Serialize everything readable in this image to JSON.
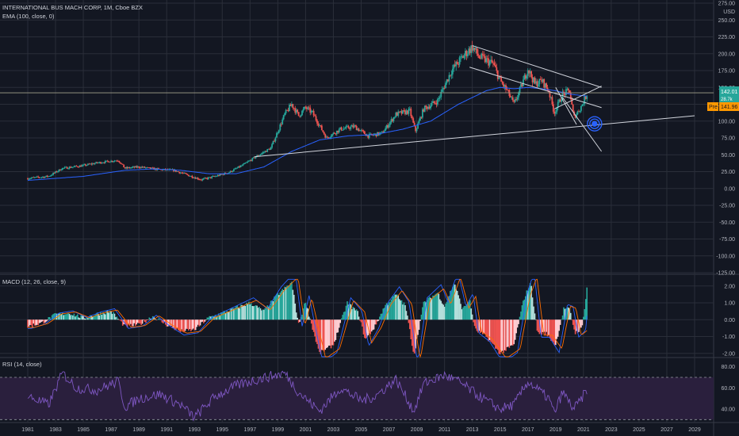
{
  "header": {
    "symbol_line": "INTERNATIONAL BUS MACH CORP, 1M, Cboe BZX",
    "ema_label": "EMA (100, close, 0)",
    "macd_label": "MACD (12, 26, close, 9)",
    "rsi_label": "RSI (14, close)",
    "price_badge": "142.01",
    "price_badge_sub": "28.7k",
    "pre_badge_tag": "Pre",
    "pre_badge_value": "141.96"
  },
  "colors": {
    "background": "#131722",
    "grid": "#2a2e39",
    "up": "#26a69a",
    "down": "#ef5350",
    "ema": "#2962ff",
    "macd_line": "#2962ff",
    "signal_line": "#ff6d00",
    "rsi_line": "#7e57c2",
    "rsi_band": "#2a1f3d",
    "trendline": "#d1d4dc",
    "price_line": "#a3a08b"
  },
  "chart_data": [
    {
      "type": "candlestick",
      "title": "INTERNATIONAL BUS MACH CORP, 1M, Cboe BZX",
      "y_ticks": [
        "275.00",
        "250.00",
        "225.00",
        "200.00",
        "175.00",
        "150.00",
        "125.00",
        "100.00",
        "75.00",
        "50.00",
        "25.00",
        "0.00",
        "-25.00",
        "-50.00",
        "-75.00",
        "-100.00",
        "-125.00"
      ],
      "y_unit": "USD",
      "x_ticks": [
        "1981",
        "1983",
        "1985",
        "1987",
        "1989",
        "1991",
        "1993",
        "1995",
        "1997",
        "1999",
        "2001",
        "2003",
        "2005",
        "2007",
        "2009",
        "2011",
        "2013",
        "2015",
        "2017",
        "2019",
        "2021",
        "2023",
        "2025",
        "2027",
        "2029"
      ],
      "ylim": [
        -125,
        275
      ],
      "last_price": 142.01,
      "price_anchors": [
        [
          1981.0,
          15
        ],
        [
          1982.5,
          18
        ],
        [
          1983.5,
          30
        ],
        [
          1985.0,
          34
        ],
        [
          1986.0,
          38
        ],
        [
          1987.5,
          42
        ],
        [
          1988.0,
          30
        ],
        [
          1989.0,
          32
        ],
        [
          1990.5,
          28
        ],
        [
          1991.5,
          27
        ],
        [
          1992.5,
          20
        ],
        [
          1993.5,
          13
        ],
        [
          1994.5,
          18
        ],
        [
          1995.5,
          24
        ],
        [
          1996.5,
          35
        ],
        [
          1997.5,
          48
        ],
        [
          1998.5,
          60
        ],
        [
          1999.5,
          110
        ],
        [
          2000.0,
          125
        ],
        [
          2000.5,
          108
        ],
        [
          2001.0,
          120
        ],
        [
          2001.5,
          112
        ],
        [
          2002.5,
          75
        ],
        [
          2003.5,
          88
        ],
        [
          2004.5,
          92
        ],
        [
          2005.5,
          78
        ],
        [
          2006.5,
          82
        ],
        [
          2007.5,
          110
        ],
        [
          2008.5,
          115
        ],
        [
          2008.9,
          85
        ],
        [
          2009.5,
          118
        ],
        [
          2010.5,
          130
        ],
        [
          2011.5,
          175
        ],
        [
          2012.5,
          200
        ],
        [
          2013.0,
          210
        ],
        [
          2013.5,
          195
        ],
        [
          2014.5,
          185
        ],
        [
          2015.0,
          160
        ],
        [
          2015.5,
          145
        ],
        [
          2016.0,
          125
        ],
        [
          2016.5,
          150
        ],
        [
          2017.0,
          178
        ],
        [
          2017.5,
          155
        ],
        [
          2018.0,
          160
        ],
        [
          2018.5,
          145
        ],
        [
          2018.9,
          112
        ],
        [
          2019.5,
          140
        ],
        [
          2020.0,
          145
        ],
        [
          2020.3,
          105
        ],
        [
          2020.8,
          120
        ],
        [
          2021.3,
          142
        ]
      ],
      "ema_anchors": [
        [
          1981.0,
          12
        ],
        [
          1985.0,
          18
        ],
        [
          1988.0,
          27
        ],
        [
          1990.0,
          29
        ],
        [
          1992.0,
          27
        ],
        [
          1994.0,
          22
        ],
        [
          1996.0,
          22
        ],
        [
          1998.0,
          32
        ],
        [
          2000.0,
          55
        ],
        [
          2002.0,
          72
        ],
        [
          2004.0,
          78
        ],
        [
          2006.0,
          80
        ],
        [
          2008.0,
          88
        ],
        [
          2010.0,
          100
        ],
        [
          2012.0,
          125
        ],
        [
          2014.0,
          145
        ],
        [
          2015.0,
          150
        ],
        [
          2016.0,
          148
        ],
        [
          2017.0,
          150
        ],
        [
          2018.0,
          148
        ],
        [
          2019.0,
          145
        ],
        [
          2020.0,
          140
        ],
        [
          2021.3,
          137
        ]
      ]
    },
    {
      "type": "bar",
      "title": "MACD (12, 26, close, 9)",
      "y_ticks": [
        "2.00",
        "1.00",
        "0.00",
        "-1.00",
        "-2.00"
      ],
      "ylim": [
        -2.2,
        2.6
      ],
      "hist_anchors": [
        [
          1981.0,
          -0.4
        ],
        [
          1982.0,
          -0.2
        ],
        [
          1983.0,
          0.3
        ],
        [
          1984.0,
          0.4
        ],
        [
          1985.0,
          0.1
        ],
        [
          1986.0,
          0.35
        ],
        [
          1987.0,
          0.5
        ],
        [
          1988.0,
          -0.4
        ],
        [
          1989.0,
          -0.3
        ],
        [
          1990.0,
          0.2
        ],
        [
          1991.0,
          -0.3
        ],
        [
          1992.0,
          -0.7
        ],
        [
          1993.0,
          -0.6
        ],
        [
          1994.0,
          0.1
        ],
        [
          1995.0,
          0.4
        ],
        [
          1996.0,
          0.7
        ],
        [
          1997.0,
          1.0
        ],
        [
          1998.0,
          0.5
        ],
        [
          1999.0,
          1.5
        ],
        [
          2000.0,
          2.2
        ],
        [
          2000.5,
          -0.3
        ],
        [
          2001.0,
          1.1
        ],
        [
          2001.5,
          -0.5
        ],
        [
          2002.0,
          -2.0
        ],
        [
          2003.0,
          -1.5
        ],
        [
          2004.0,
          1.0
        ],
        [
          2004.8,
          0.4
        ],
        [
          2005.3,
          -1.2
        ],
        [
          2006.0,
          -0.4
        ],
        [
          2006.7,
          0.8
        ],
        [
          2007.5,
          1.5
        ],
        [
          2008.2,
          0.8
        ],
        [
          2008.8,
          -2.1
        ],
        [
          2009.5,
          1.0
        ],
        [
          2010.5,
          1.6
        ],
        [
          2011.0,
          0.8
        ],
        [
          2011.7,
          2.2
        ],
        [
          2012.3,
          0.6
        ],
        [
          2012.8,
          1.2
        ],
        [
          2013.2,
          -0.6
        ],
        [
          2014.0,
          -1.0
        ],
        [
          2015.0,
          -2.0
        ],
        [
          2016.0,
          -1.5
        ],
        [
          2016.7,
          1.2
        ],
        [
          2017.2,
          2.2
        ],
        [
          2017.7,
          -0.8
        ],
        [
          2018.3,
          -0.8
        ],
        [
          2019.0,
          -1.5
        ],
        [
          2019.6,
          0.7
        ],
        [
          2020.0,
          0.6
        ],
        [
          2020.4,
          -0.8
        ],
        [
          2020.9,
          -0.5
        ],
        [
          2021.3,
          2.2
        ]
      ]
    },
    {
      "type": "line",
      "title": "RSI (14, close)",
      "y_ticks": [
        "80.00",
        "60.00",
        "40.00"
      ],
      "ylim": [
        28,
        88
      ],
      "band": [
        30,
        70
      ],
      "rsi_anchors": [
        [
          1981.0,
          52
        ],
        [
          1982.5,
          44
        ],
        [
          1983.5,
          74
        ],
        [
          1984.5,
          60
        ],
        [
          1986.0,
          58
        ],
        [
          1987.5,
          66
        ],
        [
          1988.0,
          42
        ],
        [
          1989.0,
          50
        ],
        [
          1990.5,
          54
        ],
        [
          1992.0,
          44
        ],
        [
          1993.0,
          32
        ],
        [
          1994.5,
          52
        ],
        [
          1996.0,
          62
        ],
        [
          1997.5,
          68
        ],
        [
          1999.5,
          74
        ],
        [
          2000.5,
          56
        ],
        [
          2002.0,
          38
        ],
        [
          2003.5,
          60
        ],
        [
          2005.0,
          48
        ],
        [
          2006.0,
          52
        ],
        [
          2007.5,
          68
        ],
        [
          2008.8,
          38
        ],
        [
          2009.5,
          64
        ],
        [
          2011.0,
          72
        ],
        [
          2012.0,
          66
        ],
        [
          2013.5,
          52
        ],
        [
          2015.0,
          40
        ],
        [
          2016.0,
          44
        ],
        [
          2017.0,
          66
        ],
        [
          2018.5,
          50
        ],
        [
          2018.9,
          36
        ],
        [
          2019.5,
          56
        ],
        [
          2020.3,
          40
        ],
        [
          2020.8,
          48
        ],
        [
          2021.3,
          60
        ]
      ]
    }
  ]
}
